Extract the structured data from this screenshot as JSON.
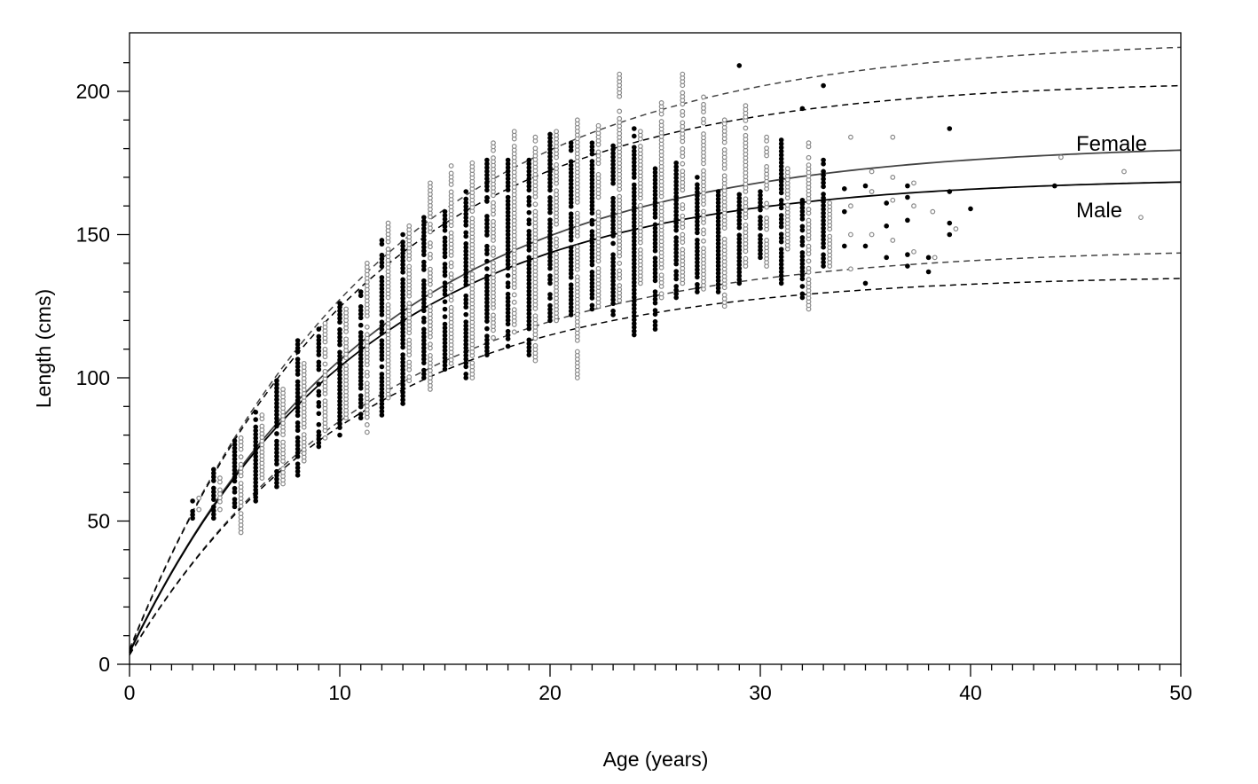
{
  "chart_data": {
    "type": "scatter",
    "title": "",
    "xlabel": "Age (years)",
    "ylabel": "Length (cms)",
    "xlim": [
      0,
      50
    ],
    "ylim": [
      0,
      220
    ],
    "x_ticks": [
      0,
      10,
      20,
      30,
      40,
      50
    ],
    "y_ticks": [
      0,
      50,
      100,
      150,
      200
    ],
    "colors": {
      "male": "#000000",
      "female": "#888888",
      "female_curve": "#444444"
    },
    "curves": [
      {
        "name": "Female",
        "label": "Female",
        "Linf": 182,
        "k": 0.085,
        "t0": -0.29,
        "style": "solid",
        "bounds_factor": [
          0.8,
          1.2
        ]
      },
      {
        "name": "Male",
        "label": "Male",
        "Linf": 170,
        "k": 0.092,
        "t0": -0.26,
        "style": "solid",
        "bounds_factor": [
          0.8,
          1.2
        ]
      }
    ],
    "series": [
      {
        "name": "Male",
        "marker": "filled",
        "columns": [
          [
            3,
            51,
            57
          ],
          [
            4,
            51,
            68
          ],
          [
            5,
            55,
            78
          ],
          [
            6,
            57,
            88
          ],
          [
            7,
            62,
            99
          ],
          [
            8,
            66,
            113
          ],
          [
            9,
            76,
            117
          ],
          [
            10,
            80,
            126
          ],
          [
            11,
            86,
            130
          ],
          [
            12,
            87,
            148
          ],
          [
            13,
            91,
            150
          ],
          [
            14,
            100,
            156
          ],
          [
            15,
            103,
            158
          ],
          [
            16,
            100,
            165
          ],
          [
            17,
            108,
            176
          ],
          [
            18,
            111,
            176
          ],
          [
            19,
            108,
            176
          ],
          [
            20,
            120,
            185
          ],
          [
            21,
            122,
            182
          ],
          [
            22,
            124,
            182
          ],
          [
            23,
            122,
            181
          ],
          [
            24,
            115,
            187
          ],
          [
            25,
            117,
            173
          ],
          [
            26,
            128,
            175
          ],
          [
            27,
            130,
            170
          ],
          [
            28,
            130,
            165
          ],
          [
            29,
            133,
            164
          ],
          [
            30,
            142,
            165
          ],
          [
            31,
            133,
            183
          ],
          [
            32,
            128,
            162
          ],
          [
            33,
            139,
            176
          ]
        ],
        "points": [
          [
            29,
            209
          ],
          [
            32,
            194
          ],
          [
            33,
            202
          ],
          [
            34,
            146
          ],
          [
            34,
            158
          ],
          [
            34,
            166
          ],
          [
            35,
            133
          ],
          [
            35,
            146
          ],
          [
            35,
            167
          ],
          [
            36,
            142
          ],
          [
            36,
            153
          ],
          [
            36,
            161
          ],
          [
            37,
            139
          ],
          [
            37,
            143
          ],
          [
            37,
            155
          ],
          [
            37,
            163
          ],
          [
            37,
            167
          ],
          [
            38,
            137
          ],
          [
            38,
            142
          ],
          [
            39,
            187
          ],
          [
            39,
            165
          ],
          [
            39,
            154
          ],
          [
            39,
            150
          ],
          [
            40,
            159
          ],
          [
            44,
            167
          ]
        ]
      },
      {
        "name": "Female",
        "marker": "hollow",
        "columns": [
          [
            3.3,
            54,
            58
          ],
          [
            4.3,
            54,
            65
          ],
          [
            5.3,
            46,
            79
          ],
          [
            6.3,
            65,
            87
          ],
          [
            7.3,
            63,
            96
          ],
          [
            8.3,
            71,
            105
          ],
          [
            9.3,
            79,
            119
          ],
          [
            10.3,
            86,
            124
          ],
          [
            11.3,
            81,
            140
          ],
          [
            12.3,
            93,
            154
          ],
          [
            13.3,
            99,
            153
          ],
          [
            14.3,
            96,
            168
          ],
          [
            15.3,
            105,
            174
          ],
          [
            16.3,
            100,
            175
          ],
          [
            17.3,
            114,
            182
          ],
          [
            18.3,
            116,
            186
          ],
          [
            19.3,
            106,
            184
          ],
          [
            20.3,
            120,
            186
          ],
          [
            21.3,
            100,
            190
          ],
          [
            22.3,
            125,
            188
          ],
          [
            23.3,
            127,
            206
          ],
          [
            24.3,
            133,
            186
          ],
          [
            25.3,
            128,
            196
          ],
          [
            26.3,
            133,
            206
          ],
          [
            27.3,
            131,
            198
          ],
          [
            28.3,
            125,
            190
          ],
          [
            29.3,
            139,
            195
          ],
          [
            30.3,
            139,
            184
          ],
          [
            31.3,
            145,
            173
          ],
          [
            32.3,
            124,
            182
          ],
          [
            33.3,
            139,
            161
          ]
        ],
        "points": [
          [
            34.3,
            184
          ],
          [
            34.3,
            160
          ],
          [
            34.3,
            150
          ],
          [
            34.3,
            138
          ],
          [
            35.3,
            172
          ],
          [
            35.3,
            165
          ],
          [
            35.3,
            150
          ],
          [
            36.3,
            184
          ],
          [
            36.3,
            170
          ],
          [
            36.3,
            162
          ],
          [
            36.3,
            148
          ],
          [
            37.3,
            160
          ],
          [
            37.3,
            168
          ],
          [
            37.3,
            144
          ],
          [
            38.2,
            158
          ],
          [
            38.3,
            142
          ],
          [
            39.3,
            152
          ],
          [
            44.3,
            177
          ],
          [
            47.3,
            172
          ],
          [
            48.1,
            156
          ]
        ]
      }
    ]
  }
}
